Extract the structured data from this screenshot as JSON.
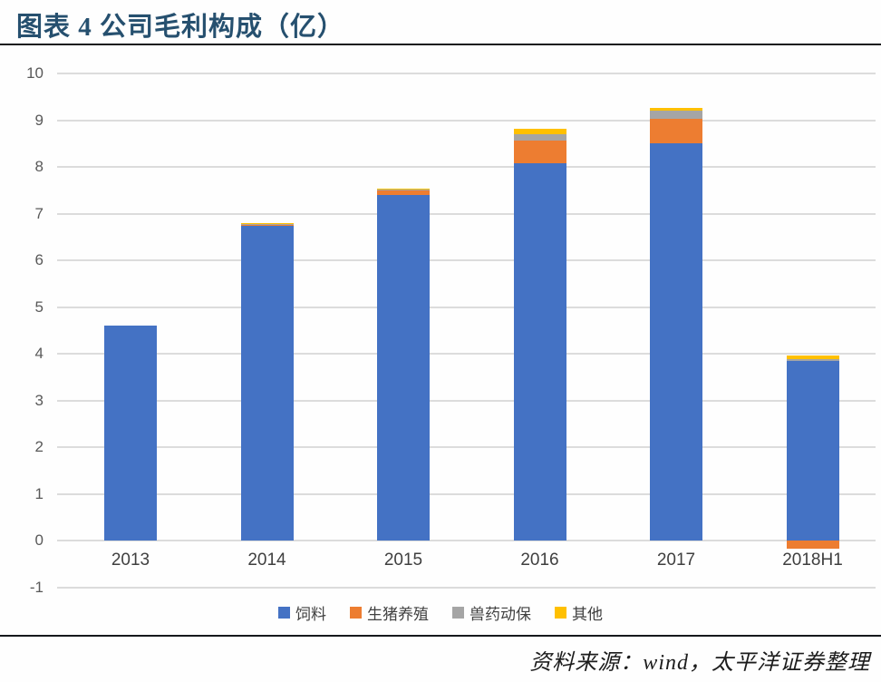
{
  "header": {
    "title": "图表 4 公司毛利构成（亿）"
  },
  "footer": {
    "source_note": "资料来源：wind，太平洋证券整理"
  },
  "chart_data": {
    "type": "bar",
    "stacked": true,
    "title": "公司毛利构成（亿）",
    "categories": [
      "2013",
      "2014",
      "2015",
      "2016",
      "2017",
      "2018H1"
    ],
    "series": [
      {
        "name": "饲料",
        "color": "#4472C4",
        "values": [
          4.6,
          6.75,
          7.4,
          8.08,
          8.5,
          3.85
        ]
      },
      {
        "name": "生猪养殖",
        "color": "#ED7D31",
        "values": [
          0,
          0.02,
          0.12,
          0.48,
          0.52,
          -0.18
        ]
      },
      {
        "name": "兽药动保",
        "color": "#A5A5A5",
        "values": [
          0,
          0.01,
          0.01,
          0.13,
          0.18,
          0.04
        ]
      },
      {
        "name": "其他",
        "color": "#FFC000",
        "values": [
          0,
          0.02,
          0.01,
          0.12,
          0.07,
          0.08
        ]
      }
    ],
    "y_ticks": [
      10,
      9,
      8,
      7,
      6,
      5,
      4,
      3,
      2,
      1,
      0,
      -1
    ],
    "ylim": [
      -1,
      10
    ],
    "xlabel": "",
    "ylabel": "",
    "grid": true,
    "legend_position": "bottom",
    "gridline_color": "#DCDCDC",
    "tick_label_color": "#595959"
  }
}
